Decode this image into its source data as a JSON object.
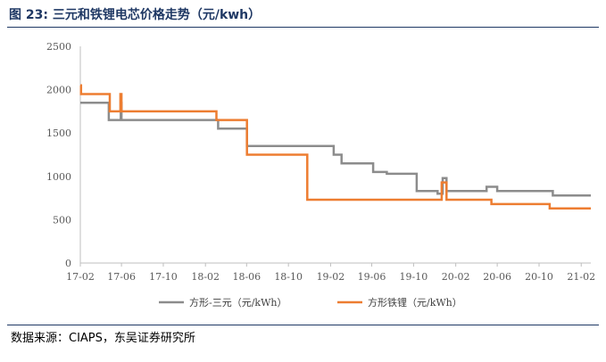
{
  "figure": {
    "title": "图 23:  三元和铁锂电芯价格走势（元/kwh）",
    "source": "数据来源：CIAPS，东吴证券研究所"
  },
  "colors": {
    "header": "#1f3864",
    "series_gray": "#8c8c8c",
    "series_orange": "#ed7d31",
    "axis": "#bfbfbf"
  },
  "chart_data": {
    "type": "line",
    "x_is_date": true,
    "xlim": [
      "2017-02-01",
      "2021-03-01"
    ],
    "ylim": [
      0,
      2500
    ],
    "yticks": [
      0,
      500,
      1000,
      1500,
      2000,
      2500
    ],
    "xticks": [
      {
        "date": "2017-02-01",
        "label": "17-02"
      },
      {
        "date": "2017-06-01",
        "label": "17-06"
      },
      {
        "date": "2017-10-01",
        "label": "17-10"
      },
      {
        "date": "2018-02-01",
        "label": "18-02"
      },
      {
        "date": "2018-06-01",
        "label": "18-06"
      },
      {
        "date": "2018-10-01",
        "label": "18-10"
      },
      {
        "date": "2019-02-01",
        "label": "19-02"
      },
      {
        "date": "2019-06-01",
        "label": "19-06"
      },
      {
        "date": "2019-10-01",
        "label": "19-10"
      },
      {
        "date": "2020-02-01",
        "label": "20-02"
      },
      {
        "date": "2020-06-01",
        "label": "20-06"
      },
      {
        "date": "2020-10-01",
        "label": "20-10"
      },
      {
        "date": "2021-02-01",
        "label": "21-02"
      }
    ],
    "legend_position": "bottom",
    "grid": false,
    "series": [
      {
        "name": "方形-三元（元/kWh）",
        "color": "#8c8c8c",
        "step": true,
        "points": [
          [
            "2017-02-01",
            1850
          ],
          [
            "2017-04-25",
            1650
          ],
          [
            "2017-05-28",
            1650
          ],
          [
            "2017-05-30",
            1850
          ],
          [
            "2017-06-01",
            1650
          ],
          [
            "2018-03-01",
            1650
          ],
          [
            "2018-03-10",
            1550
          ],
          [
            "2018-06-01",
            1550
          ],
          [
            "2018-06-02",
            1350
          ],
          [
            "2019-02-01",
            1350
          ],
          [
            "2019-02-10",
            1250
          ],
          [
            "2019-03-05",
            1150
          ],
          [
            "2019-06-05",
            1050
          ],
          [
            "2019-07-15",
            1030
          ],
          [
            "2019-10-01",
            1030
          ],
          [
            "2019-10-10",
            830
          ],
          [
            "2019-12-10",
            800
          ],
          [
            "2019-12-25",
            980
          ],
          [
            "2020-01-05",
            830
          ],
          [
            "2020-04-28",
            830
          ],
          [
            "2020-05-01",
            880
          ],
          [
            "2020-06-01",
            830
          ],
          [
            "2020-11-01",
            830
          ],
          [
            "2020-11-10",
            780
          ],
          [
            "2021-03-01",
            780
          ]
        ]
      },
      {
        "name": "方形铁锂（元/kWh）",
        "color": "#ed7d31",
        "step": true,
        "points": [
          [
            "2017-02-01",
            2050
          ],
          [
            "2017-02-03",
            1950
          ],
          [
            "2017-04-25",
            1950
          ],
          [
            "2017-04-28",
            1750
          ],
          [
            "2017-05-27",
            1750
          ],
          [
            "2017-05-29",
            1950
          ],
          [
            "2017-06-01",
            1750
          ],
          [
            "2018-03-01",
            1750
          ],
          [
            "2018-03-05",
            1650
          ],
          [
            "2018-06-01",
            1650
          ],
          [
            "2018-06-02",
            1250
          ],
          [
            "2018-11-20",
            1250
          ],
          [
            "2018-11-25",
            730
          ],
          [
            "2019-12-20",
            730
          ],
          [
            "2019-12-22",
            930
          ],
          [
            "2020-01-05",
            730
          ],
          [
            "2020-05-01",
            730
          ],
          [
            "2020-05-15",
            680
          ],
          [
            "2020-10-20",
            680
          ],
          [
            "2020-11-01",
            630
          ],
          [
            "2021-03-01",
            630
          ]
        ]
      }
    ]
  }
}
